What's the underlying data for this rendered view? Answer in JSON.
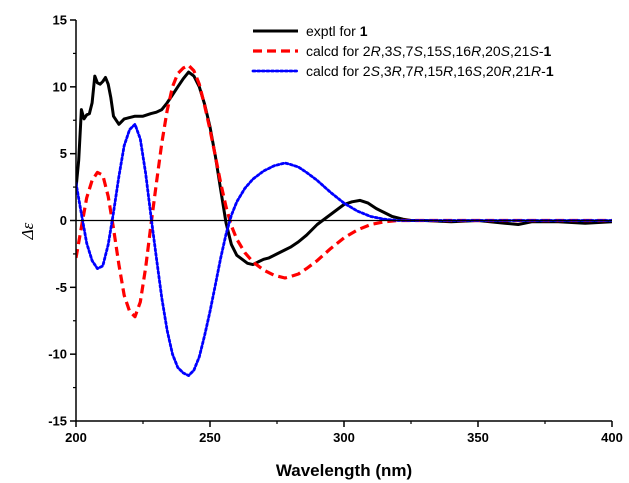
{
  "chart_data": {
    "type": "line",
    "xlabel": "Wavelength (nm)",
    "ylabel": "Δε",
    "xlim": [
      200,
      400
    ],
    "ylim": [
      -15,
      15
    ],
    "xticks": [
      200,
      250,
      300,
      350,
      400
    ],
    "yticks": [
      -15,
      -10,
      -5,
      0,
      5,
      10,
      15
    ],
    "zero_line": true,
    "grid": false,
    "legend_position": "top-right",
    "series": [
      {
        "name": "exptl for 1",
        "legend_parts": [
          [
            "exptl for ",
            "n"
          ],
          [
            "1",
            "b"
          ]
        ],
        "color": "#000000",
        "dash": "solid",
        "x": [
          200,
          201,
          202,
          203,
          204,
          205,
          206,
          207,
          208,
          209,
          210,
          211,
          212,
          213,
          214,
          216,
          218,
          220,
          222,
          225,
          228,
          230,
          232,
          234,
          236,
          238,
          240,
          242,
          244,
          246,
          248,
          250,
          252,
          254,
          256,
          258,
          260,
          262,
          264,
          266,
          268,
          270,
          272,
          275,
          278,
          280,
          283,
          286,
          290,
          294,
          298,
          300,
          303,
          306,
          309,
          312,
          315,
          318,
          320,
          322,
          325,
          330,
          340,
          350,
          360,
          365,
          370,
          380,
          390,
          400
        ],
        "y": [
          2.4,
          4.5,
          8.3,
          7.6,
          7.9,
          8.0,
          8.8,
          10.8,
          10.3,
          10.2,
          10.4,
          10.7,
          10.2,
          9.2,
          7.8,
          7.2,
          7.6,
          7.7,
          7.8,
          7.8,
          8.0,
          8.1,
          8.3,
          8.8,
          9.4,
          10.0,
          10.6,
          11.1,
          10.8,
          10.0,
          8.7,
          7.0,
          4.8,
          2.3,
          -0.2,
          -1.8,
          -2.6,
          -2.9,
          -3.2,
          -3.3,
          -3.1,
          -2.9,
          -2.8,
          -2.5,
          -2.2,
          -2.0,
          -1.6,
          -1.1,
          -0.3,
          0.3,
          0.9,
          1.2,
          1.4,
          1.5,
          1.3,
          0.9,
          0.6,
          0.3,
          0.2,
          0.1,
          0.0,
          0.0,
          -0.1,
          0.0,
          -0.2,
          -0.3,
          -0.1,
          -0.1,
          -0.2,
          -0.1
        ]
      },
      {
        "name": "calcd for 2R,3S,7S,15S,16R,20S,21S-1",
        "legend_parts": [
          [
            "calcd for 2",
            "n"
          ],
          [
            "R",
            "i"
          ],
          [
            ",3",
            "n"
          ],
          [
            "S",
            "i"
          ],
          [
            ",7",
            "n"
          ],
          [
            "S",
            "i"
          ],
          [
            ",15",
            "n"
          ],
          [
            "S",
            "i"
          ],
          [
            ",16",
            "n"
          ],
          [
            "R",
            "i"
          ],
          [
            ",20",
            "n"
          ],
          [
            "S",
            "i"
          ],
          [
            ",21",
            "n"
          ],
          [
            "S",
            "i"
          ],
          [
            "-",
            "n"
          ],
          [
            "1",
            "b"
          ]
        ],
        "color": "#ff0000",
        "dash": "dashed",
        "x": [
          200,
          202,
          204,
          206,
          208,
          210,
          212,
          214,
          216,
          218,
          220,
          222,
          224,
          226,
          228,
          230,
          232,
          234,
          236,
          238,
          240,
          242,
          244,
          246,
          248,
          250,
          252,
          254,
          256,
          258,
          260,
          263,
          266,
          270,
          274,
          278,
          280,
          283,
          286,
          290,
          295,
          300,
          305,
          310,
          315,
          320,
          330,
          340,
          350,
          360,
          370,
          380,
          390,
          400
        ],
        "y": [
          -2.8,
          -0.5,
          1.7,
          3.0,
          3.6,
          3.4,
          1.8,
          -0.6,
          -3.3,
          -5.6,
          -6.8,
          -7.2,
          -6.1,
          -3.5,
          -0.3,
          2.8,
          5.8,
          8.2,
          10.0,
          11.0,
          11.4,
          11.6,
          11.2,
          10.2,
          8.6,
          6.8,
          4.8,
          2.8,
          1.0,
          -0.4,
          -1.4,
          -2.4,
          -3.1,
          -3.7,
          -4.1,
          -4.3,
          -4.2,
          -4.0,
          -3.6,
          -3.0,
          -2.1,
          -1.3,
          -0.7,
          -0.3,
          -0.1,
          0.0,
          0.0,
          0.0,
          0.0,
          0.0,
          0.0,
          0.0,
          0.0,
          0.0
        ]
      },
      {
        "name": "calcd for 2S,3R,7R,15R,16S,20R,21R-1",
        "legend_parts": [
          [
            "calcd for 2",
            "n"
          ],
          [
            "S",
            "i"
          ],
          [
            ",3",
            "n"
          ],
          [
            "R",
            "i"
          ],
          [
            ",7",
            "n"
          ],
          [
            "R",
            "i"
          ],
          [
            ",15",
            "n"
          ],
          [
            "R",
            "i"
          ],
          [
            ",16",
            "n"
          ],
          [
            "S",
            "i"
          ],
          [
            ",20",
            "n"
          ],
          [
            "R",
            "i"
          ],
          [
            ",21",
            "n"
          ],
          [
            "R",
            "i"
          ],
          [
            "-",
            "n"
          ],
          [
            "1",
            "b"
          ]
        ],
        "color": "#0000ff",
        "dash": "dotted",
        "x": [
          200,
          202,
          204,
          206,
          208,
          210,
          212,
          214,
          216,
          218,
          220,
          222,
          224,
          226,
          228,
          230,
          232,
          234,
          236,
          238,
          240,
          242,
          244,
          246,
          248,
          250,
          252,
          254,
          256,
          258,
          260,
          263,
          266,
          270,
          274,
          278,
          280,
          283,
          286,
          290,
          295,
          300,
          305,
          310,
          315,
          320,
          330,
          340,
          350,
          360,
          370,
          380,
          390,
          400
        ],
        "y": [
          2.8,
          0.5,
          -1.7,
          -3.0,
          -3.6,
          -3.4,
          -1.8,
          0.6,
          3.3,
          5.6,
          6.8,
          7.2,
          6.1,
          3.5,
          0.3,
          -2.8,
          -5.8,
          -8.2,
          -10.0,
          -11.0,
          -11.4,
          -11.6,
          -11.2,
          -10.2,
          -8.6,
          -6.8,
          -4.8,
          -2.8,
          -1.0,
          0.4,
          1.4,
          2.4,
          3.1,
          3.7,
          4.1,
          4.3,
          4.2,
          4.0,
          3.6,
          3.0,
          2.1,
          1.3,
          0.7,
          0.3,
          0.1,
          0.0,
          0.0,
          0.0,
          0.0,
          0.0,
          0.0,
          0.0,
          0.0,
          0.0
        ]
      }
    ]
  }
}
